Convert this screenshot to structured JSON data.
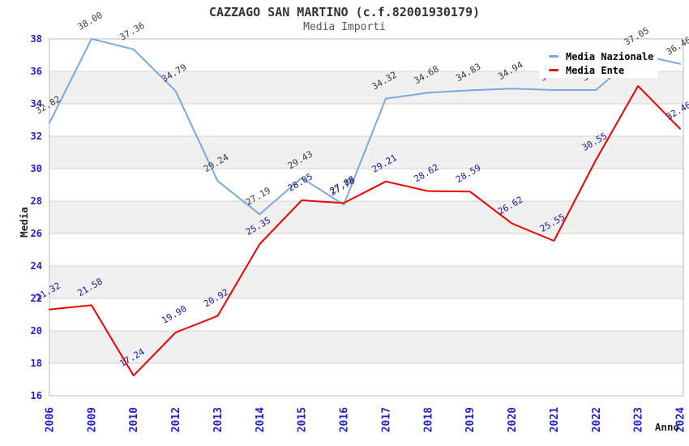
{
  "header": {
    "title": "CAZZAGO SAN MARTINO (c.f.82001930179)",
    "subtitle": "Media Importi"
  },
  "chart_data": {
    "type": "line",
    "title": "CAZZAGO SAN MARTINO (c.f.82001930179)",
    "subtitle": "Media Importi",
    "xlabel": "Anno",
    "ylabel": "Media",
    "ylim": [
      16,
      38
    ],
    "ytick_step": 2,
    "grid": "horizontal-gridlines-with-alternating-bands",
    "legend_position": "top-right",
    "categories": [
      "2006",
      "2009",
      "2010",
      "2012",
      "2013",
      "2014",
      "2015",
      "2016",
      "2017",
      "2018",
      "2019",
      "2020",
      "2021",
      "2022",
      "2023",
      "2024"
    ],
    "series": [
      {
        "name": "Media Nazionale",
        "color": "#79a9dd",
        "label_color": "#3a3a3a",
        "values": [
          32.82,
          38.0,
          37.36,
          34.79,
          29.24,
          27.19,
          29.43,
          27.78,
          34.32,
          34.68,
          34.83,
          34.94,
          34.85,
          34.85,
          37.05,
          36.46
        ],
        "labels_hidden_by_legend": [
          "2021",
          "2022"
        ]
      },
      {
        "name": "Media Ente",
        "color": "#ee0000",
        "label_color": "#191999",
        "values": [
          21.32,
          21.58,
          17.24,
          19.9,
          20.92,
          25.35,
          28.05,
          27.88,
          29.21,
          28.62,
          28.59,
          26.62,
          25.55,
          30.55,
          35.1,
          32.46
        ],
        "labels_hidden_by_legend": [
          "2023"
        ]
      }
    ]
  },
  "colors": {
    "axis_tick_text": "#2222cc",
    "band_fill": "#f0f0f0",
    "gridline": "#d6d6d6",
    "plot_border": "#b8b8b8",
    "title_text": "#333333",
    "subtitle_text": "#555555",
    "axis_title_text": "#222222",
    "legend_bg": "#ffffff",
    "legend_text": "#000000"
  }
}
